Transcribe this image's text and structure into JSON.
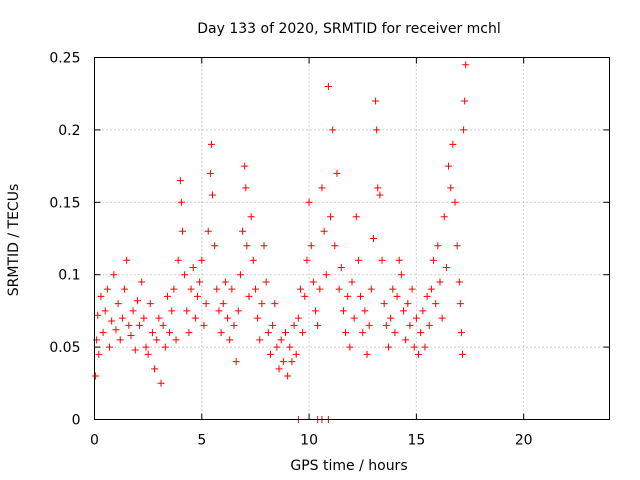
{
  "chart_data": {
    "type": "scatter",
    "title": "Day 133 of 2020, SRMTID for receiver mchl",
    "xlabel": "GPS time / hours",
    "ylabel": "SRMTID / TECUs",
    "xlim": [
      0,
      24
    ],
    "ylim": [
      0,
      0.25
    ],
    "x_ticks": [
      0,
      5,
      10,
      15,
      20
    ],
    "x_tick_labels": [
      "0",
      "5",
      "10",
      "15",
      "20"
    ],
    "y_ticks": [
      0,
      0.05,
      0.1,
      0.15,
      0.2,
      0.25
    ],
    "y_tick_labels": [
      "0",
      "0.05",
      "0.1",
      "0.15",
      "0.2",
      "0.25"
    ],
    "grid": true,
    "marker": "plus",
    "color": "#ff0000",
    "series": [
      {
        "name": "SRMTID",
        "points": [
          [
            0.05,
            0.03
          ],
          [
            0.1,
            0.055
          ],
          [
            0.15,
            0.072
          ],
          [
            0.2,
            0.045
          ],
          [
            0.3,
            0.085
          ],
          [
            0.4,
            0.06
          ],
          [
            0.5,
            0.075
          ],
          [
            0.6,
            0.09
          ],
          [
            0.7,
            0.05
          ],
          [
            0.8,
            0.068
          ],
          [
            0.9,
            0.1
          ],
          [
            1.0,
            0.062
          ],
          [
            1.1,
            0.08
          ],
          [
            1.2,
            0.055
          ],
          [
            1.3,
            0.07
          ],
          [
            1.4,
            0.09
          ],
          [
            1.5,
            0.11
          ],
          [
            1.6,
            0.065
          ],
          [
            1.7,
            0.058
          ],
          [
            1.8,
            0.075
          ],
          [
            1.9,
            0.048
          ],
          [
            2.0,
            0.082
          ],
          [
            2.1,
            0.065
          ],
          [
            2.2,
            0.095
          ],
          [
            2.3,
            0.07
          ],
          [
            2.4,
            0.05
          ],
          [
            2.5,
            0.045
          ],
          [
            2.6,
            0.08
          ],
          [
            2.7,
            0.06
          ],
          [
            2.8,
            0.035
          ],
          [
            2.9,
            0.055
          ],
          [
            3.0,
            0.07
          ],
          [
            3.1,
            0.025
          ],
          [
            3.2,
            0.065
          ],
          [
            3.3,
            0.05
          ],
          [
            3.4,
            0.085
          ],
          [
            3.5,
            0.06
          ],
          [
            3.6,
            0.075
          ],
          [
            3.7,
            0.09
          ],
          [
            3.8,
            0.055
          ],
          [
            3.9,
            0.11
          ],
          [
            4.0,
            0.165
          ],
          [
            4.05,
            0.15
          ],
          [
            4.1,
            0.13
          ],
          [
            4.2,
            0.1
          ],
          [
            4.3,
            0.075
          ],
          [
            4.4,
            0.06
          ],
          [
            4.5,
            0.09
          ],
          [
            4.6,
            0.105
          ],
          [
            4.7,
            0.07
          ],
          [
            4.8,
            0.085
          ],
          [
            4.9,
            0.095
          ],
          [
            5.0,
            0.11
          ],
          [
            5.1,
            0.065
          ],
          [
            5.2,
            0.08
          ],
          [
            5.3,
            0.13
          ],
          [
            5.4,
            0.17
          ],
          [
            5.45,
            0.19
          ],
          [
            5.5,
            0.155
          ],
          [
            5.6,
            0.12
          ],
          [
            5.7,
            0.09
          ],
          [
            5.8,
            0.075
          ],
          [
            5.9,
            0.06
          ],
          [
            6.0,
            0.08
          ],
          [
            6.1,
            0.095
          ],
          [
            6.2,
            0.07
          ],
          [
            6.3,
            0.055
          ],
          [
            6.4,
            0.09
          ],
          [
            6.5,
            0.065
          ],
          [
            6.6,
            0.04
          ],
          [
            6.7,
            0.075
          ],
          [
            6.8,
            0.1
          ],
          [
            6.9,
            0.13
          ],
          [
            7.0,
            0.175
          ],
          [
            7.05,
            0.16
          ],
          [
            7.1,
            0.12
          ],
          [
            7.2,
            0.085
          ],
          [
            7.3,
            0.14
          ],
          [
            7.4,
            0.11
          ],
          [
            7.5,
            0.09
          ],
          [
            7.6,
            0.07
          ],
          [
            7.7,
            0.055
          ],
          [
            7.8,
            0.08
          ],
          [
            7.9,
            0.12
          ],
          [
            8.0,
            0.095
          ],
          [
            8.1,
            0.06
          ],
          [
            8.2,
            0.045
          ],
          [
            8.3,
            0.065
          ],
          [
            8.4,
            0.08
          ],
          [
            8.5,
            0.05
          ],
          [
            8.6,
            0.035
          ],
          [
            8.7,
            0.055
          ],
          [
            8.8,
            0.04
          ],
          [
            8.9,
            0.06
          ],
          [
            9.0,
            0.03
          ],
          [
            9.1,
            0.05
          ],
          [
            9.2,
            0.04
          ],
          [
            9.3,
            0.065
          ],
          [
            9.4,
            0.045
          ],
          [
            9.5,
            0.07
          ],
          [
            9.6,
            0.09
          ],
          [
            9.7,
            0.06
          ],
          [
            9.8,
            0.085
          ],
          [
            9.9,
            0.11
          ],
          [
            10.0,
            0.15
          ],
          [
            10.1,
            0.12
          ],
          [
            10.2,
            0.095
          ],
          [
            10.3,
            0.075
          ],
          [
            10.4,
            0.065
          ],
          [
            10.5,
            0.09
          ],
          [
            10.6,
            0.16
          ],
          [
            10.7,
            0.13
          ],
          [
            10.8,
            0.1
          ],
          [
            10.9,
            0.23
          ],
          [
            11.0,
            0.14
          ],
          [
            11.1,
            0.2
          ],
          [
            11.2,
            0.12
          ],
          [
            11.3,
            0.17
          ],
          [
            11.4,
            0.09
          ],
          [
            11.5,
            0.105
          ],
          [
            11.6,
            0.075
          ],
          [
            11.7,
            0.06
          ],
          [
            11.8,
            0.085
          ],
          [
            11.9,
            0.05
          ],
          [
            12.0,
            0.095
          ],
          [
            12.1,
            0.07
          ],
          [
            12.2,
            0.14
          ],
          [
            12.3,
            0.11
          ],
          [
            12.4,
            0.085
          ],
          [
            12.5,
            0.06
          ],
          [
            12.6,
            0.075
          ],
          [
            12.7,
            0.045
          ],
          [
            12.8,
            0.065
          ],
          [
            12.9,
            0.09
          ],
          [
            13.0,
            0.125
          ],
          [
            13.1,
            0.22
          ],
          [
            13.15,
            0.2
          ],
          [
            13.2,
            0.16
          ],
          [
            13.3,
            0.155
          ],
          [
            13.4,
            0.11
          ],
          [
            13.5,
            0.08
          ],
          [
            13.6,
            0.065
          ],
          [
            13.7,
            0.05
          ],
          [
            13.8,
            0.07
          ],
          [
            13.9,
            0.09
          ],
          [
            14.0,
            0.06
          ],
          [
            14.1,
            0.085
          ],
          [
            14.2,
            0.11
          ],
          [
            14.3,
            0.1
          ],
          [
            14.4,
            0.075
          ],
          [
            14.5,
            0.055
          ],
          [
            14.6,
            0.08
          ],
          [
            14.7,
            0.065
          ],
          [
            14.8,
            0.09
          ],
          [
            14.9,
            0.05
          ],
          [
            15.0,
            0.07
          ],
          [
            15.1,
            0.045
          ],
          [
            15.2,
            0.06
          ],
          [
            15.3,
            0.075
          ],
          [
            15.4,
            0.05
          ],
          [
            15.5,
            0.085
          ],
          [
            15.6,
            0.065
          ],
          [
            15.7,
            0.09
          ],
          [
            15.8,
            0.11
          ],
          [
            15.9,
            0.08
          ],
          [
            16.0,
            0.12
          ],
          [
            16.1,
            0.095
          ],
          [
            16.2,
            0.07
          ],
          [
            16.3,
            0.14
          ],
          [
            16.4,
            0.105
          ],
          [
            16.5,
            0.175
          ],
          [
            16.6,
            0.16
          ],
          [
            16.7,
            0.19
          ],
          [
            16.8,
            0.15
          ],
          [
            16.9,
            0.12
          ],
          [
            17.0,
            0.095
          ],
          [
            17.05,
            0.08
          ],
          [
            17.1,
            0.06
          ],
          [
            17.15,
            0.045
          ],
          [
            17.2,
            0.2
          ],
          [
            17.25,
            0.22
          ],
          [
            17.3,
            0.245
          ]
        ]
      }
    ],
    "zero_markers_x": [
      9.5,
      10.4,
      10.6,
      10.9
    ]
  }
}
